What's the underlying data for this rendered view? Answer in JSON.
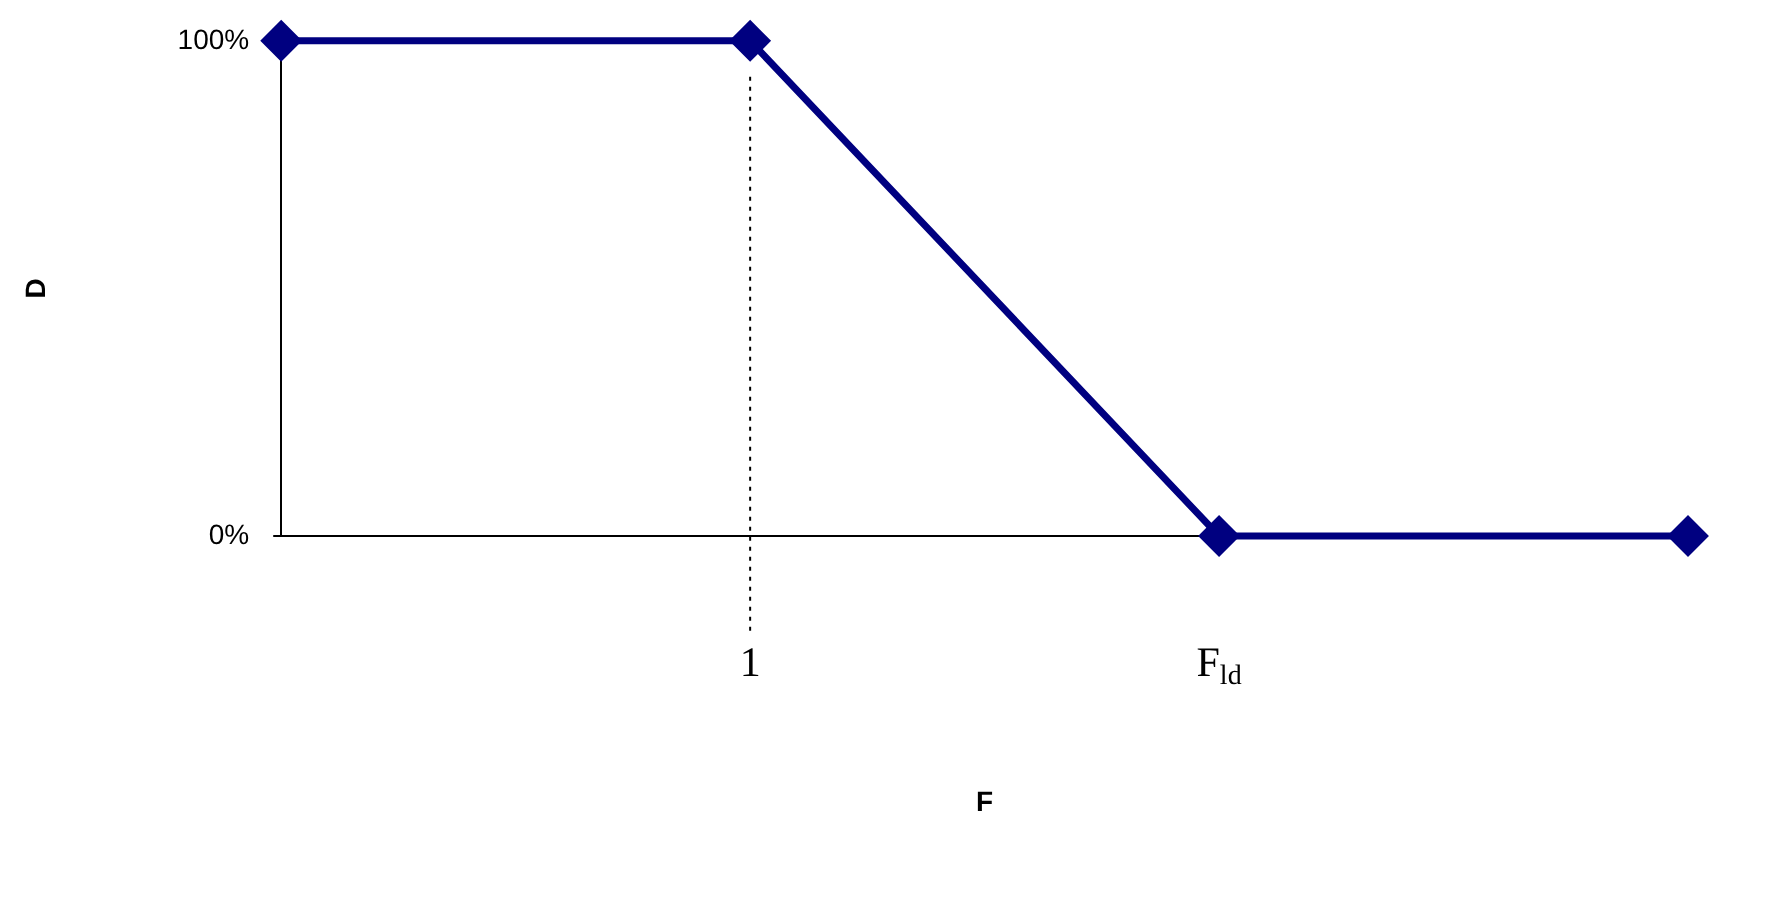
{
  "chart_data": {
    "type": "line",
    "xlabel": "F",
    "ylabel": "D",
    "categories": [
      null,
      "1",
      "F$_{ld}$",
      null
    ],
    "series": [
      {
        "color": "#000080",
        "values": [
          100,
          100,
          0,
          0
        ]
      }
    ],
    "ylim": [
      0,
      100
    ],
    "yticks": [
      {
        "value": 0,
        "label": "0%"
      },
      {
        "value": 100,
        "label": "100%"
      }
    ],
    "ref_lines": [
      {
        "axis": "x",
        "value": "1",
        "line_style": "dotted",
        "color": "#000000"
      }
    ],
    "grid": false,
    "legend": false,
    "marker": "diamond",
    "line_style": "solid"
  }
}
